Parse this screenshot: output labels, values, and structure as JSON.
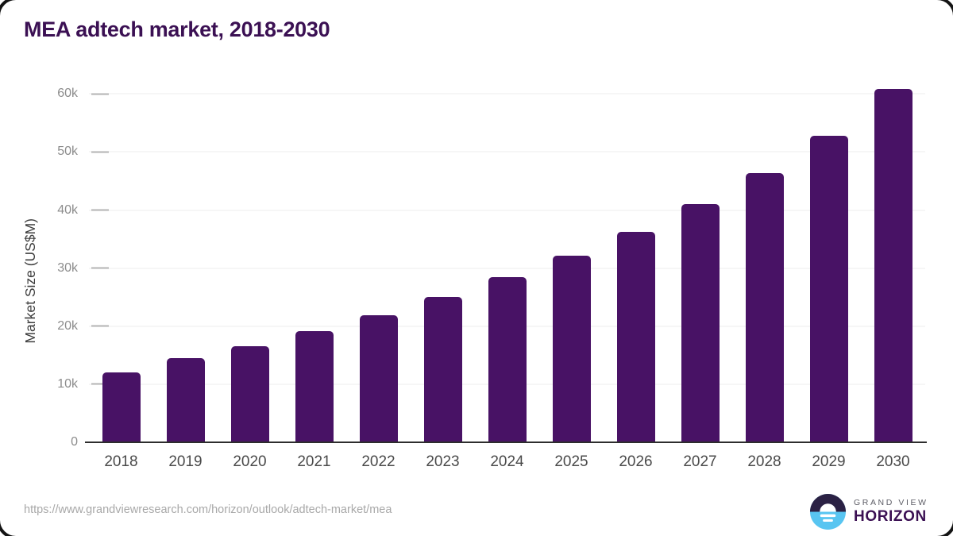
{
  "header": {
    "title": "MEA adtech market, 2018-2030"
  },
  "chart_data": {
    "type": "bar",
    "title": "MEA adtech market, 2018-2030",
    "categories": [
      "2018",
      "2019",
      "2020",
      "2021",
      "2022",
      "2023",
      "2024",
      "2025",
      "2026",
      "2027",
      "2028",
      "2029",
      "2030"
    ],
    "values": [
      12000,
      14500,
      16500,
      19100,
      21900,
      25000,
      28400,
      32100,
      36300,
      41000,
      46400,
      52800,
      60900
    ],
    "xlabel": "",
    "ylabel": "Market Size (US$M)",
    "ylim": [
      0,
      62500
    ],
    "yticks": [
      {
        "value": 0,
        "label": "0"
      },
      {
        "value": 10000,
        "label": "10k"
      },
      {
        "value": 20000,
        "label": "20k"
      },
      {
        "value": 30000,
        "label": "30k"
      },
      {
        "value": 40000,
        "label": "40k"
      },
      {
        "value": 50000,
        "label": "50k"
      },
      {
        "value": 60000,
        "label": "60k"
      }
    ],
    "grid": "horizontal",
    "legend": "none",
    "bar_color": "#481265"
  },
  "footer": {
    "source_url": "https://www.grandviewresearch.com/horizon/outlook/adtech-market/mea",
    "logo": {
      "line1": "GRAND VIEW",
      "line2": "HORIZON",
      "mark_top_color": "#2b2144",
      "mark_bottom_color": "#58c5f1"
    }
  }
}
